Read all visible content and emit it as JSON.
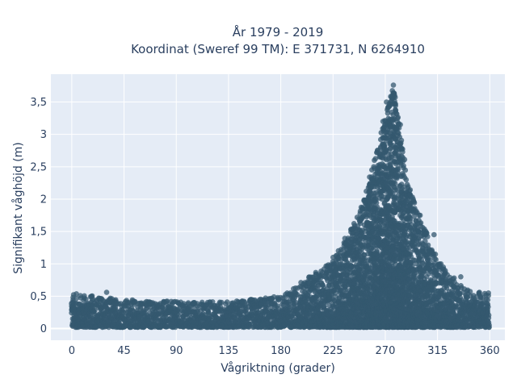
{
  "chart_data": {
    "type": "scatter",
    "title_lines": [
      "År 1979 - 2019",
      "Koordinat (Sweref 99 TM): E 371731, N 6264910"
    ],
    "xlabel": "Vågriktning (grader)",
    "ylabel": "Signifikant våghöjd (m)",
    "xlim": [
      -18,
      373
    ],
    "ylim": [
      -0.18,
      3.93
    ],
    "x_ticks": [
      0,
      45,
      90,
      135,
      180,
      225,
      270,
      315,
      360
    ],
    "x_tick_labels": [
      "0",
      "45",
      "90",
      "135",
      "180",
      "225",
      "270",
      "315",
      "360"
    ],
    "y_ticks": [
      0,
      0.5,
      1,
      1.5,
      2,
      2.5,
      3,
      3.5
    ],
    "y_tick_labels": [
      "0",
      "0,5",
      "1",
      "1,5",
      "2",
      "2,5",
      "3",
      "3,5"
    ],
    "grid": true,
    "marker_color": "#34586f",
    "plot_background": "#e5ecf6",
    "envelope": {
      "description_points": [
        {
          "x": 0,
          "upper": 0.55
        },
        {
          "x": 45,
          "upper": 0.45
        },
        {
          "x": 90,
          "upper": 0.42
        },
        {
          "x": 135,
          "upper": 0.42
        },
        {
          "x": 180,
          "upper": 0.5
        },
        {
          "x": 225,
          "upper": 1.05
        },
        {
          "x": 250,
          "upper": 1.9
        },
        {
          "x": 270,
          "upper": 3.3
        },
        {
          "x": 277,
          "upper": 3.76
        },
        {
          "x": 290,
          "upper": 2.2
        },
        {
          "x": 315,
          "upper": 1.05
        },
        {
          "x": 340,
          "upper": 0.6
        },
        {
          "x": 360,
          "upper": 0.55
        }
      ],
      "lower_bound": 0.0
    },
    "notable_points": [
      {
        "x": 277,
        "y": 3.76
      },
      {
        "x": 276,
        "y": 3.6
      },
      {
        "x": 278,
        "y": 3.6
      },
      {
        "x": 271,
        "y": 3.5
      },
      {
        "x": 268,
        "y": 3.2
      },
      {
        "x": 283,
        "y": 3.15
      },
      {
        "x": 260,
        "y": 2.5
      },
      {
        "x": 263,
        "y": 2.35
      },
      {
        "x": 262,
        "y": 2.1
      },
      {
        "x": 294,
        "y": 2.0
      },
      {
        "x": 300,
        "y": 1.75
      },
      {
        "x": 312,
        "y": 1.45
      },
      {
        "x": 252,
        "y": 1.6
      },
      {
        "x": 240,
        "y": 1.38
      },
      {
        "x": 225,
        "y": 1.1
      },
      {
        "x": 230,
        "y": 1.08
      },
      {
        "x": 318,
        "y": 1.0
      },
      {
        "x": 320,
        "y": 0.95
      },
      {
        "x": 335,
        "y": 0.8
      },
      {
        "x": 30,
        "y": 0.56
      }
    ]
  }
}
